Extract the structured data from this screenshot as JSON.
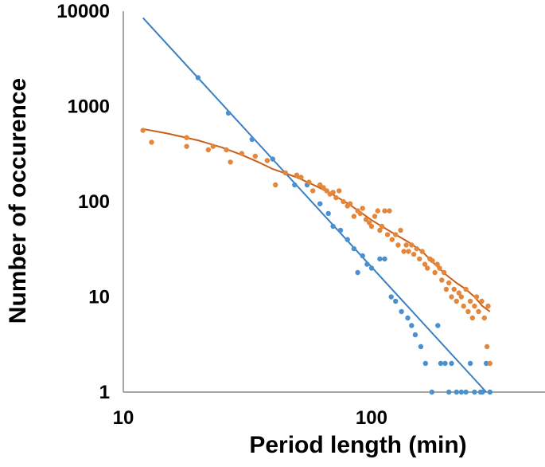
{
  "chart_data": {
    "type": "scatter",
    "title": "",
    "xlabel": "Period length (min)",
    "ylabel": "Number of occurence",
    "xscale": "log",
    "yscale": "log",
    "xlim": [
      10,
      500
    ],
    "ylim": [
      1,
      10000
    ],
    "x_ticks": [
      {
        "value": 10,
        "label": "10"
      },
      {
        "value": 100,
        "label": "100"
      }
    ],
    "y_ticks": [
      {
        "value": 1,
        "label": "1"
      },
      {
        "value": 10,
        "label": "10"
      },
      {
        "value": 100,
        "label": "100"
      },
      {
        "value": 1000,
        "label": "1000"
      },
      {
        "value": 10000,
        "label": "10000"
      }
    ],
    "grid": false,
    "legend": "none",
    "colors": {
      "blue": "#4a90cf",
      "orange": "#e5873a",
      "orange_line": "#c8601b",
      "blue_line": "#3a7fc1"
    },
    "series": [
      {
        "name": "blue-points",
        "color": "#4a90cf",
        "kind": "scatter",
        "points": [
          [
            20,
            2000
          ],
          [
            26.5,
            850
          ],
          [
            33,
            450
          ],
          [
            40,
            280
          ],
          [
            49,
            150
          ],
          [
            55,
            150
          ],
          [
            62,
            95
          ],
          [
            67,
            75
          ],
          [
            70,
            55
          ],
          [
            75,
            50
          ],
          [
            80,
            40
          ],
          [
            85,
            32
          ],
          [
            88,
            18
          ],
          [
            92,
            27
          ],
          [
            96,
            22
          ],
          [
            100,
            20
          ],
          [
            108,
            25
          ],
          [
            113,
            25
          ],
          [
            120,
            10
          ],
          [
            125,
            9
          ],
          [
            132,
            7
          ],
          [
            140,
            6
          ],
          [
            145,
            5
          ],
          [
            150,
            4
          ],
          [
            158,
            3
          ],
          [
            165,
            2
          ],
          [
            175,
            1
          ],
          [
            185,
            5
          ],
          [
            190,
            2
          ],
          [
            198,
            2
          ],
          [
            205,
            1
          ],
          [
            210,
            2
          ],
          [
            220,
            1
          ],
          [
            230,
            1
          ],
          [
            240,
            1
          ],
          [
            250,
            2
          ],
          [
            260,
            1
          ],
          [
            275,
            1
          ],
          [
            280,
            1
          ],
          [
            290,
            2
          ],
          [
            300,
            1
          ]
        ]
      },
      {
        "name": "blue-power-fit",
        "color": "#3a7fc1",
        "kind": "line",
        "points": [
          [
            12,
            8500
          ],
          [
            290,
            1
          ]
        ]
      },
      {
        "name": "orange-points",
        "color": "#e5873a",
        "kind": "scatter",
        "points": [
          [
            12,
            560
          ],
          [
            13,
            420
          ],
          [
            18,
            380
          ],
          [
            18,
            470
          ],
          [
            22,
            350
          ],
          [
            23,
            380
          ],
          [
            26,
            350
          ],
          [
            27,
            260
          ],
          [
            30,
            320
          ],
          [
            34,
            300
          ],
          [
            38,
            270
          ],
          [
            41,
            150
          ],
          [
            45,
            200
          ],
          [
            50,
            190
          ],
          [
            52,
            180
          ],
          [
            56,
            160
          ],
          [
            58,
            130
          ],
          [
            62,
            150
          ],
          [
            64,
            140
          ],
          [
            66,
            130
          ],
          [
            68,
            120
          ],
          [
            70,
            125
          ],
          [
            72,
            110
          ],
          [
            74,
            130
          ],
          [
            77,
            100
          ],
          [
            80,
            90
          ],
          [
            82,
            95
          ],
          [
            85,
            70
          ],
          [
            88,
            80
          ],
          [
            90,
            75
          ],
          [
            92,
            85
          ],
          [
            95,
            65
          ],
          [
            98,
            60
          ],
          [
            100,
            55
          ],
          [
            103,
            70
          ],
          [
            106,
            80
          ],
          [
            108,
            50
          ],
          [
            110,
            55
          ],
          [
            113,
            80
          ],
          [
            116,
            45
          ],
          [
            118,
            80
          ],
          [
            121,
            40
          ],
          [
            125,
            45
          ],
          [
            128,
            35
          ],
          [
            131,
            50
          ],
          [
            135,
            30
          ],
          [
            138,
            35
          ],
          [
            141,
            30
          ],
          [
            145,
            35
          ],
          [
            148,
            28
          ],
          [
            152,
            32
          ],
          [
            156,
            25
          ],
          [
            160,
            30
          ],
          [
            164,
            22
          ],
          [
            168,
            20
          ],
          [
            172,
            25
          ],
          [
            176,
            24
          ],
          [
            180,
            18
          ],
          [
            184,
            22
          ],
          [
            188,
            20
          ],
          [
            192,
            15
          ],
          [
            196,
            18
          ],
          [
            200,
            12
          ],
          [
            205,
            14
          ],
          [
            210,
            10
          ],
          [
            215,
            12
          ],
          [
            220,
            9
          ],
          [
            225,
            11
          ],
          [
            230,
            10
          ],
          [
            235,
            8
          ],
          [
            240,
            12
          ],
          [
            245,
            7
          ],
          [
            250,
            9
          ],
          [
            255,
            6
          ],
          [
            260,
            8
          ],
          [
            265,
            10
          ],
          [
            270,
            7
          ],
          [
            278,
            9
          ],
          [
            285,
            6
          ],
          [
            292,
            3
          ],
          [
            295,
            8
          ],
          [
            300,
            2
          ]
        ]
      },
      {
        "name": "orange-trend-fit",
        "color": "#c8601b",
        "kind": "line",
        "points": [
          [
            12,
            580
          ],
          [
            15,
            520
          ],
          [
            20,
            440
          ],
          [
            25,
            370
          ],
          [
            30,
            310
          ],
          [
            35,
            260
          ],
          [
            40,
            220
          ],
          [
            50,
            180
          ],
          [
            60,
            145
          ],
          [
            70,
            118
          ],
          [
            80,
            96
          ],
          [
            90,
            78
          ],
          [
            100,
            64
          ],
          [
            120,
            48
          ],
          [
            140,
            38
          ],
          [
            160,
            30
          ],
          [
            180,
            22
          ],
          [
            200,
            17
          ],
          [
            220,
            14
          ],
          [
            240,
            12
          ],
          [
            260,
            10
          ],
          [
            280,
            8
          ],
          [
            300,
            7
          ]
        ]
      }
    ]
  }
}
